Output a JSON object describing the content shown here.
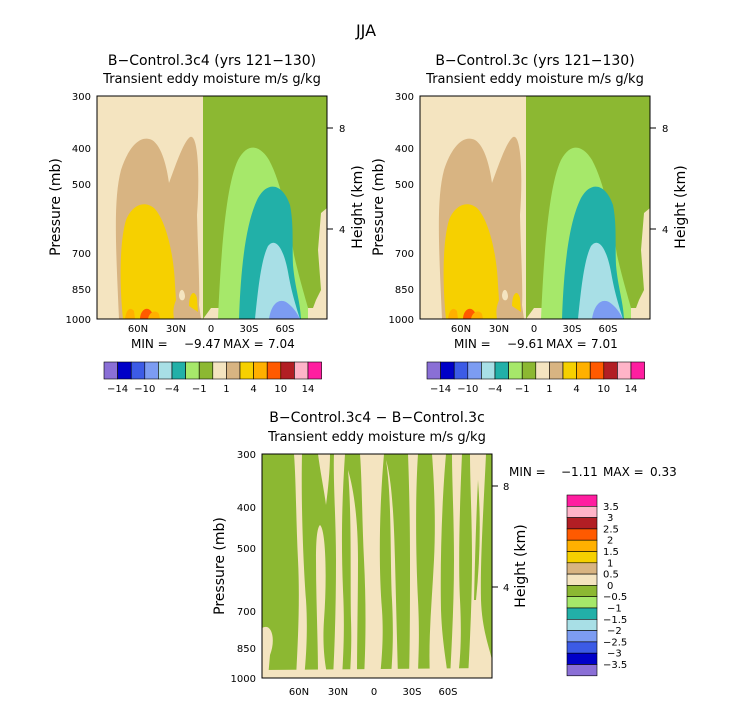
{
  "figure": {
    "title": "JJA"
  },
  "chart_data": [
    {
      "type": "contour",
      "title": "B−Control.3c4 (yrs 121−130)",
      "subtitle": "Transient eddy moisture m/s g/kg",
      "ylabel": "Pressure (mb)",
      "ylabel_right": "Height (km)",
      "y_ticks": [
        "300",
        "400",
        "500",
        "700",
        "850",
        "1000"
      ],
      "y_right_ticks": [
        "8",
        "4"
      ],
      "x_ticks": [
        "60N",
        "30N",
        "0",
        "30S",
        "60S"
      ],
      "stats": {
        "min_label": "MIN =",
        "min": "−9.47",
        "max_label": "MAX =",
        "max": "7.04"
      }
    },
    {
      "type": "contour",
      "title": "B−Control.3c (yrs 121−130)",
      "subtitle": "Transient eddy moisture m/s g/kg",
      "ylabel": "Pressure (mb)",
      "ylabel_right": "Height (km)",
      "y_ticks": [
        "300",
        "400",
        "500",
        "700",
        "850",
        "1000"
      ],
      "y_right_ticks": [
        "8",
        "4"
      ],
      "x_ticks": [
        "60N",
        "30N",
        "0",
        "30S",
        "60S"
      ],
      "stats": {
        "min_label": "MIN =",
        "min": "−9.61",
        "max_label": "MAX =",
        "max": "7.01"
      }
    },
    {
      "type": "contour",
      "title": "B−Control.3c4 − B−Control.3c",
      "subtitle": "Transient eddy moisture m/s g/kg",
      "ylabel": "Pressure (mb)",
      "ylabel_right": "Height (km)",
      "y_ticks": [
        "300",
        "400",
        "500",
        "700",
        "850",
        "1000"
      ],
      "y_right_ticks": [
        "8",
        "4"
      ],
      "x_ticks": [
        "60N",
        "30N",
        "0",
        "30S",
        "60S"
      ],
      "stats": {
        "min_label": "MIN =",
        "min": "−1.11",
        "max_label": "MAX =",
        "max": "0.33"
      }
    }
  ],
  "colorbar_top": {
    "colors": [
      "#8a6fd6",
      "#0000c8",
      "#3c5be6",
      "#7c9cf2",
      "#a8dfe6",
      "#22b0a8",
      "#a6e86a",
      "#8cb832",
      "#f4e4c0",
      "#d8b482",
      "#f6d000",
      "#ffb000",
      "#ff5a00",
      "#b21e24",
      "#ffb4c8",
      "#ff1ea0"
    ],
    "labels": [
      "−14",
      "−10",
      "−4",
      "−1",
      "1",
      "4",
      "10",
      "14"
    ]
  },
  "colorbar_diff": {
    "colors": [
      "#ff1ea0",
      "#ffb4c8",
      "#b21e24",
      "#ff5a00",
      "#ffb000",
      "#f6d000",
      "#d8b482",
      "#f4e4c0",
      "#8cb832",
      "#a6e86a",
      "#22b0a8",
      "#a8dfe6",
      "#7c9cf2",
      "#3c5be6",
      "#0000c8",
      "#8a6fd6"
    ],
    "labels": [
      "3.5",
      "3",
      "2.5",
      "2",
      "1.5",
      "1",
      "0.5",
      "0",
      "−0.5",
      "−1",
      "−1.5",
      "−2",
      "−2.5",
      "−3",
      "−3.5"
    ]
  }
}
